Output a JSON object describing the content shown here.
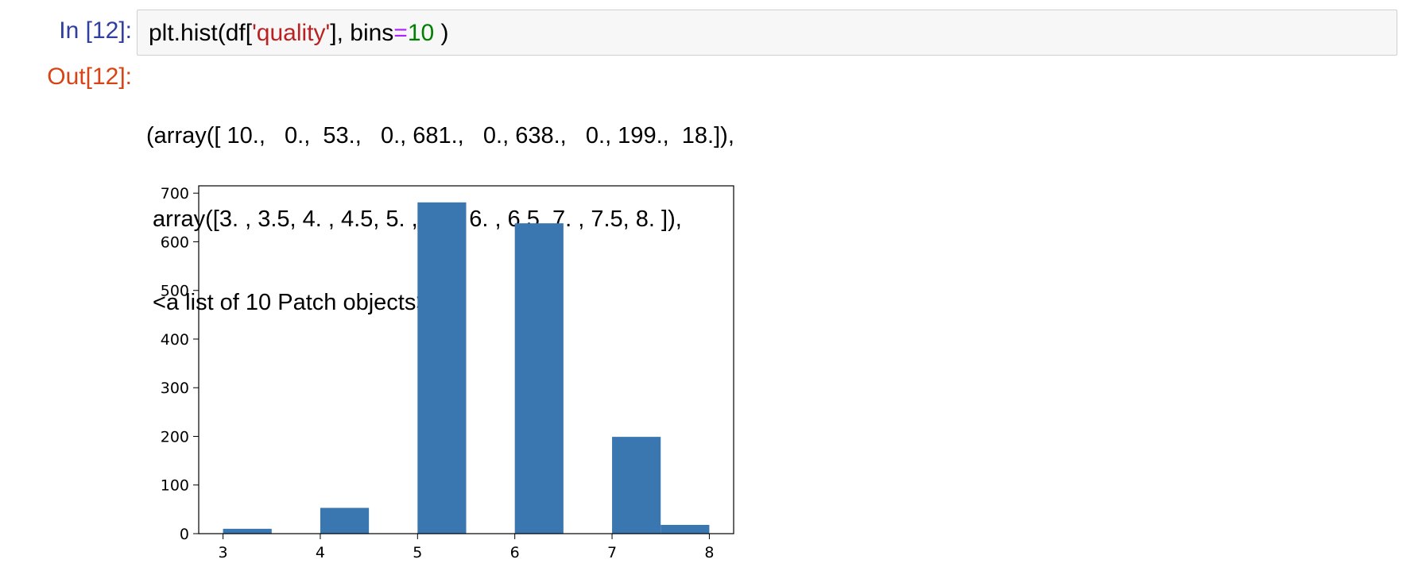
{
  "cell": {
    "in_prompt": "In [12]:",
    "out_prompt": "Out[12]:",
    "code": {
      "t1": "plt.hist(df[",
      "t2": "'quality'",
      "t3": "], bins",
      "t4": "=",
      "t5": "10",
      "t6": " )"
    },
    "output_lines": [
      "(array([ 10.,   0.,  53.,   0., 681.,   0., 638.,   0., 199.,  18.]),",
      " array([3. , 3.5, 4. , 4.5, 5. , 5.5, 6. , 6.5, 7. , 7.5, 8. ]),",
      " <a list of 10 Patch objects>)"
    ]
  },
  "chart_data": {
    "type": "bar",
    "bin_edges": [
      3,
      3.5,
      4,
      4.5,
      5,
      5.5,
      6,
      6.5,
      7,
      7.5,
      8
    ],
    "values": [
      10,
      0,
      53,
      0,
      681,
      0,
      638,
      0,
      199,
      18
    ],
    "x_ticks": [
      "3",
      "4",
      "5",
      "6",
      "7",
      "8"
    ],
    "y_ticks": [
      "0",
      "100",
      "200",
      "300",
      "400",
      "500",
      "600",
      "700"
    ],
    "xlim": [
      2.75,
      8.25
    ],
    "ylim": [
      0,
      715.05
    ],
    "grid": false,
    "bar_color": "#3a76af"
  }
}
